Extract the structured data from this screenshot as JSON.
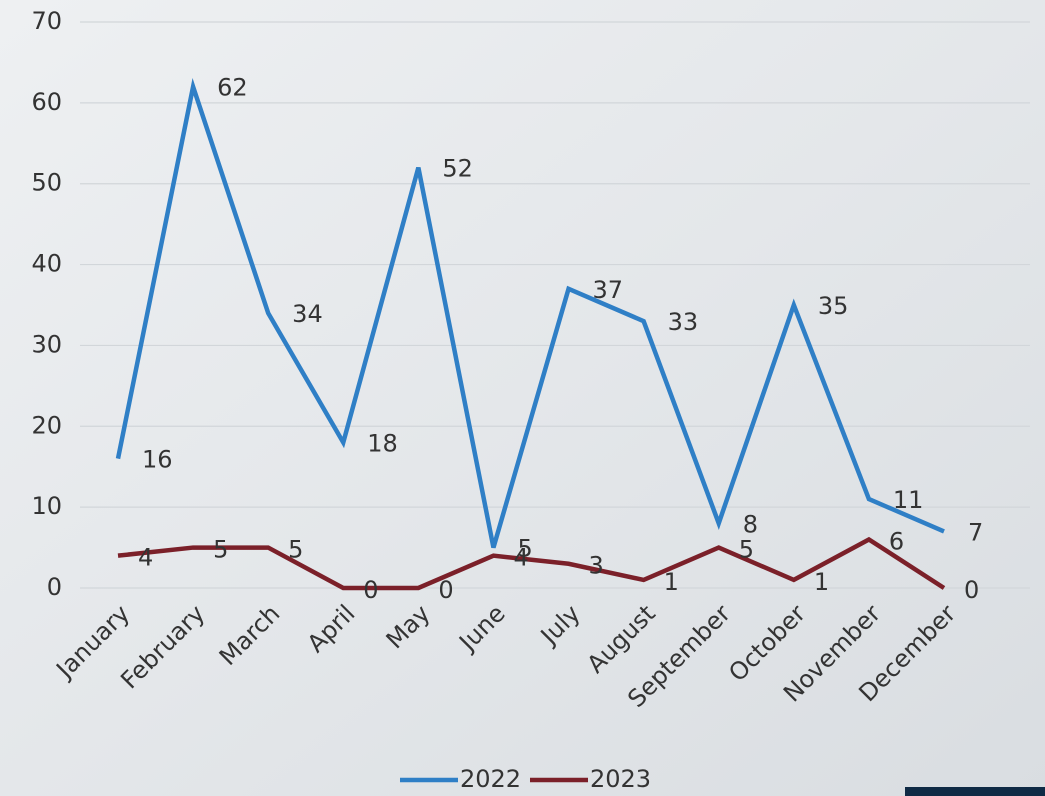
{
  "chart_data": {
    "type": "line",
    "categories": [
      "January",
      "February",
      "March",
      "April",
      "May",
      "June",
      "July",
      "August",
      "September",
      "October",
      "November",
      "December"
    ],
    "series": [
      {
        "name": "2022",
        "color": "#2f7fc6",
        "values": [
          16,
          62,
          34,
          18,
          52,
          5,
          37,
          33,
          8,
          35,
          11,
          7
        ]
      },
      {
        "name": "2023",
        "color": "#7b2029",
        "values": [
          4,
          5,
          5,
          0,
          0,
          4,
          3,
          1,
          5,
          1,
          6,
          0
        ]
      }
    ],
    "ylim": [
      0,
      70
    ],
    "yticks": [
      0,
      10,
      20,
      30,
      40,
      50,
      60,
      70
    ],
    "grid": true,
    "legend": "bottom"
  }
}
